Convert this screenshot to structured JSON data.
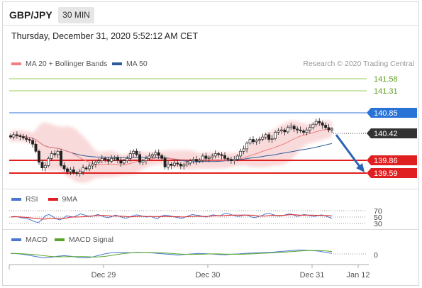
{
  "header": {
    "pair": "GBP/JPY",
    "timeframe": "30 MIN",
    "datetime": "Thursday, December 31, 2020 5:52:12 AM CET"
  },
  "legend": {
    "ma20": "MA 20 + Bollinger Bands",
    "ma50": "MA 50",
    "credit": "Research © 2020 Trading Central",
    "ma20_color": "#f08080",
    "ma50_color": "#2e5c9a"
  },
  "levels": {
    "r2": "141.58",
    "r1": "141.31",
    "pivot": "140.85",
    "last": "140.42",
    "s1": "139.86",
    "s2": "139.59",
    "resistance_color": "#7db82f",
    "pivot_color": "#2a73d6",
    "support_color": "#e02020",
    "last_color": "#333333"
  },
  "rsi": {
    "label": "RSI",
    "ma_label": "9MA",
    "levels": [
      "70",
      "50",
      "30"
    ],
    "rsi_color": "#4a78d0",
    "ma_color": "#e02020"
  },
  "macd": {
    "label": "MACD",
    "signal_label": "MACD Signal",
    "zero": "0",
    "macd_color": "#4a78d0",
    "signal_color": "#5aa62a"
  },
  "xaxis": {
    "labels": [
      "Dec 29",
      "Dec 30",
      "Dec 31",
      "Jan 12"
    ]
  },
  "chart_data": {
    "type": "candlestick",
    "title": "GBP/JPY",
    "timeframe": "30 MIN",
    "y_range": [
      139.45,
      141.75
    ],
    "price_levels": [
      141.58,
      141.31,
      140.85,
      140.42,
      139.86,
      139.59
    ],
    "forecast": {
      "from": 140.42,
      "to": 139.59,
      "direction": "down"
    },
    "close": [
      140.35,
      140.4,
      140.38,
      140.36,
      140.33,
      140.3,
      140.28,
      140.2,
      140.05,
      139.82,
      139.7,
      139.75,
      139.9,
      140.0,
      139.98,
      140.05,
      139.75,
      139.68,
      139.62,
      139.66,
      139.6,
      139.58,
      139.62,
      139.7,
      139.68,
      139.74,
      139.78,
      139.82,
      139.85,
      139.9,
      139.88,
      139.84,
      139.9,
      139.92,
      139.86,
      139.8,
      139.85,
      139.9,
      140.0,
      140.05,
      139.98,
      139.82,
      139.85,
      139.9,
      139.95,
      139.98,
      140.02,
      139.96,
      139.9,
      139.72,
      139.78,
      139.75,
      139.8,
      139.78,
      139.74,
      139.76,
      139.8,
      139.85,
      139.88,
      139.84,
      139.86,
      139.95,
      139.9,
      139.92,
      139.95,
      140.0,
      139.98,
      139.96,
      139.9,
      139.88,
      139.85,
      139.88,
      139.95,
      140.05,
      140.1,
      140.22,
      140.3,
      140.25,
      140.28,
      140.3,
      140.35,
      140.4,
      140.3,
      140.32,
      140.45,
      140.48,
      140.5,
      140.46,
      140.55,
      140.58,
      140.52,
      140.5,
      140.48,
      140.45,
      140.5,
      140.55,
      140.62,
      140.68,
      140.65,
      140.6,
      140.55,
      140.5,
      140.52
    ],
    "rsi": [
      50,
      52,
      51,
      48,
      47,
      44,
      40,
      35,
      33,
      42,
      55,
      58,
      52,
      45,
      41,
      46,
      54,
      52,
      50,
      55,
      60,
      57,
      54,
      52,
      55,
      58,
      54,
      50,
      48,
      52,
      56,
      53,
      49,
      46,
      50,
      54,
      57,
      55,
      52,
      50,
      53,
      48,
      45,
      52,
      56,
      55,
      53,
      50,
      48,
      46,
      50,
      54,
      58,
      56,
      55,
      52,
      50,
      54,
      57,
      55,
      53,
      60,
      62,
      58,
      55,
      52,
      54,
      57,
      55,
      50,
      48,
      52,
      55,
      60,
      62,
      58,
      55,
      53,
      55,
      58,
      60,
      57,
      52,
      55,
      58,
      56,
      54,
      52,
      55,
      57,
      54,
      50,
      46
    ],
    "macd": [
      0.02,
      0.01,
      -0.02,
      -0.06,
      -0.1,
      -0.14,
      -0.12,
      -0.08,
      -0.06,
      -0.08,
      -0.12,
      -0.14,
      -0.12,
      -0.06,
      0.0,
      0.04,
      0.06,
      0.05,
      0.04,
      0.06,
      0.05,
      0.04,
      0.02,
      0.0,
      -0.02,
      -0.04,
      -0.02,
      0.0,
      0.02,
      0.01,
      0.0,
      -0.02,
      -0.03,
      -0.01,
      0.0,
      0.02,
      0.03,
      0.04,
      0.05,
      0.06,
      0.08,
      0.1,
      0.12,
      0.14,
      0.13,
      0.12,
      0.1,
      0.06,
      0.02
    ]
  }
}
